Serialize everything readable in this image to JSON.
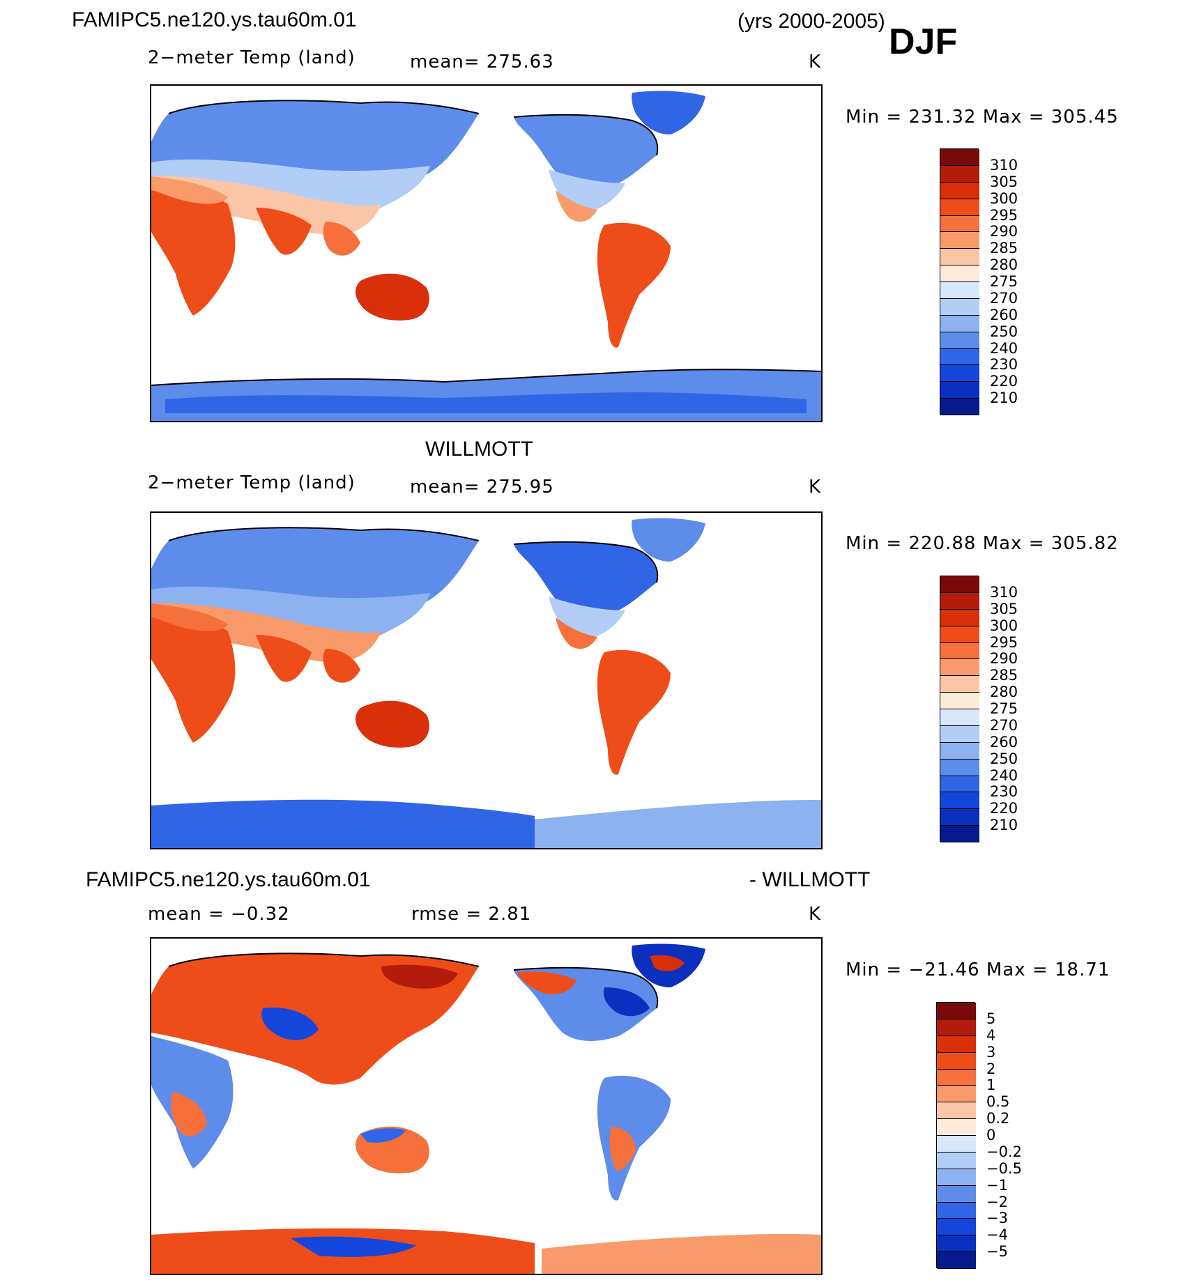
{
  "header": {
    "run_name": "FAMIPC5.ne120.ys.tau60m.01",
    "years": "(yrs 2000-2005)",
    "season": "DJF"
  },
  "panels": [
    {
      "id": "model",
      "title": "",
      "variable": "2−meter Temp (land)",
      "stat_text": "mean=  275.63",
      "unit": "K",
      "minmax": "Min  =  231.32  Max  =  305.45",
      "colorbar": {
        "labels": [
          "310",
          "305",
          "300",
          "295",
          "290",
          "285",
          "280",
          "275",
          "270",
          "260",
          "250",
          "240",
          "230",
          "220",
          "210"
        ],
        "colors": [
          "#7a0a0a",
          "#b31b0a",
          "#d9300a",
          "#ee4d1a",
          "#f5703a",
          "#f89a6a",
          "#fbc6a6",
          "#fdebd9",
          "#d8e8fb",
          "#b2cdf6",
          "#8cb2f0",
          "#5e8ceb",
          "#3066e6",
          "#1446dc",
          "#0b2fbf",
          "#061a8c"
        ]
      }
    },
    {
      "id": "obs",
      "title": "WILLMOTT",
      "variable": "2−meter Temp (land)",
      "stat_text": "mean=  275.95",
      "unit": "K",
      "minmax": "Min  =  220.88  Max  =  305.82",
      "colorbar": {
        "labels": [
          "310",
          "305",
          "300",
          "295",
          "290",
          "285",
          "280",
          "275",
          "270",
          "260",
          "250",
          "240",
          "230",
          "220",
          "210"
        ],
        "colors": [
          "#7a0a0a",
          "#b31b0a",
          "#d9300a",
          "#ee4d1a",
          "#f5703a",
          "#f89a6a",
          "#fbc6a6",
          "#fdebd9",
          "#d8e8fb",
          "#b2cdf6",
          "#8cb2f0",
          "#5e8ceb",
          "#3066e6",
          "#1446dc",
          "#0b2fbf",
          "#061a8c"
        ]
      }
    },
    {
      "id": "diff",
      "title_left": "FAMIPC5.ne120.ys.tau60m.01",
      "title_right": "- WILLMOTT",
      "mean_text": "mean  =   −0.32",
      "rmse_text": "rmse  =     2.81",
      "unit": "K",
      "minmax": "Min  =  −21.46  Max  =    18.71",
      "colorbar": {
        "labels": [
          "5",
          "4",
          "3",
          "2",
          "1",
          "0.5",
          "0.2",
          "0",
          "−0.2",
          "−0.5",
          "−1",
          "−2",
          "−3",
          "−4",
          "−5"
        ],
        "colors": [
          "#7a0a0a",
          "#b31b0a",
          "#d9300a",
          "#ee4d1a",
          "#f5703a",
          "#f89a6a",
          "#fbc6a6",
          "#fdebd9",
          "#d8e8fb",
          "#b2cdf6",
          "#8cb2f0",
          "#5e8ceb",
          "#3066e6",
          "#1446dc",
          "#0b2fbf",
          "#061a8c"
        ]
      }
    }
  ],
  "chart_data": [
    {
      "type": "heatmap",
      "title": "FAMIPC5.ne120.ys.tau60m.01",
      "subtitle": "2−meter Temp (land)",
      "season": "DJF",
      "years": "2000-2005",
      "unit": "K",
      "mean": 275.63,
      "min": 231.32,
      "max": 305.45,
      "levels": [
        210,
        220,
        230,
        240,
        250,
        260,
        270,
        275,
        280,
        285,
        290,
        295,
        300,
        305,
        310
      ]
    },
    {
      "type": "heatmap",
      "title": "WILLMOTT",
      "subtitle": "2−meter Temp (land)",
      "season": "DJF",
      "unit": "K",
      "mean": 275.95,
      "min": 220.88,
      "max": 305.82,
      "levels": [
        210,
        220,
        230,
        240,
        250,
        260,
        270,
        275,
        280,
        285,
        290,
        295,
        300,
        305,
        310
      ]
    },
    {
      "type": "heatmap",
      "title": "FAMIPC5.ne120.ys.tau60m.01 - WILLMOTT",
      "season": "DJF",
      "unit": "K",
      "mean": -0.32,
      "rmse": 2.81,
      "min": -21.46,
      "max": 18.71,
      "levels": [
        -5,
        -4,
        -3,
        -2,
        -1,
        -0.5,
        -0.2,
        0,
        0.2,
        0.5,
        1,
        2,
        3,
        4,
        5
      ]
    }
  ]
}
